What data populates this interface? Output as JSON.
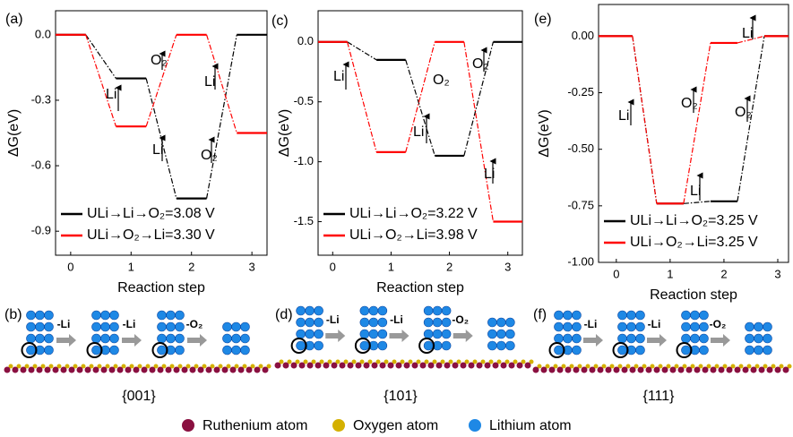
{
  "chart_data": [
    {
      "type": "line",
      "label": "(a)",
      "xlabel": "Reaction step",
      "ylabel": "ΔG(eV)",
      "xlim": [
        -0.25,
        3.25
      ],
      "xticks": [
        0,
        1,
        2,
        3
      ],
      "ylim": [
        -1.01,
        0.11
      ],
      "yticks": [
        {
          "value": 0,
          "label": "0.0"
        },
        -0.3,
        -0.6,
        -0.9
      ],
      "series": [
        {
          "name": "ULi→Li→O₂=3.08 V",
          "color": "#000000",
          "x": [
            -0.25,
            0.25,
            0.75,
            1.25,
            1.75,
            2.25,
            2.75,
            3.25
          ],
          "values": [
            0,
            0,
            -0.2,
            -0.2,
            -0.75,
            -0.75,
            0,
            0
          ]
        },
        {
          "name": "ULi→O₂→Li=3.30 V",
          "color": "#ff0000",
          "x": [
            -0.25,
            0.25,
            0.75,
            1.25,
            1.75,
            2.25,
            2.75,
            3.25
          ],
          "values": [
            0,
            0,
            -0.42,
            -0.42,
            0,
            0,
            -0.45,
            -0.45
          ]
        }
      ],
      "annotations": [
        "Li",
        "O₂",
        "Li",
        "Li",
        "O₂"
      ]
    },
    {
      "type": "line",
      "label": "(c)",
      "xlabel": "Reaction step",
      "ylabel": "ΔG(eV)",
      "xlim": [
        -0.25,
        3.25
      ],
      "xticks": [
        0,
        1,
        2,
        3
      ],
      "ylim": [
        -1.78,
        0.26
      ],
      "yticks": [
        {
          "value": 0,
          "label": "0.0"
        },
        -0.5,
        {
          "value": -1,
          "label": "-1.0"
        },
        -1.5
      ],
      "series": [
        {
          "name": "ULi→Li→O₂=3.22 V",
          "color": "#000000",
          "x": [
            -0.25,
            0.25,
            0.75,
            1.25,
            1.75,
            2.25,
            2.75,
            3.25
          ],
          "values": [
            0,
            0,
            -0.15,
            -0.15,
            -0.95,
            -0.95,
            0,
            0
          ]
        },
        {
          "name": "ULi→O₂→Li=3.98 V",
          "color": "#ff0000",
          "x": [
            -0.25,
            0.25,
            0.75,
            1.25,
            1.75,
            2.25,
            2.75,
            3.25
          ],
          "values": [
            0,
            0,
            -0.92,
            -0.92,
            0,
            0,
            -1.5,
            -1.5
          ]
        }
      ],
      "annotations": [
        "Li",
        "O₂",
        "Li",
        "O₂",
        "Li"
      ]
    },
    {
      "type": "line",
      "label": "(e)",
      "xlabel": "Reaction step",
      "ylabel": "ΔG(eV)",
      "xlim": [
        -0.33,
        3.2
      ],
      "xticks": [
        0,
        1,
        2,
        3
      ],
      "ylim": [
        -1.0,
        0.14
      ],
      "yticks": [
        {
          "value": 0,
          "label": "0.00"
        },
        -0.25,
        {
          "value": -0.5,
          "label": "-0.50"
        },
        -0.75,
        {
          "value": -1,
          "label": "-1.00"
        }
      ],
      "series": [
        {
          "name": "ULi→Li→O₂=3.25 V",
          "color": "#000000",
          "x": [
            -0.33,
            0.3,
            0.75,
            1.25,
            1.75,
            2.25,
            2.75,
            3.2
          ],
          "values": [
            0,
            0,
            -0.74,
            -0.74,
            -0.73,
            -0.73,
            0,
            0
          ]
        },
        {
          "name": "ULi→O₂→Li=3.25 V",
          "color": "#ff0000",
          "x": [
            -0.33,
            0.3,
            0.75,
            1.25,
            1.75,
            2.25,
            2.75,
            3.2
          ],
          "values": [
            0,
            0,
            -0.74,
            -0.74,
            -0.03,
            -0.03,
            0,
            0
          ]
        }
      ],
      "annotations": [
        "Li",
        "O₂",
        "O₂",
        "Li",
        "Li"
      ]
    }
  ],
  "structures": [
    {
      "label": "(b)",
      "facet": "{001}",
      "steps": [
        "-Li",
        "-Li",
        "-O₂"
      ]
    },
    {
      "label": "(d)",
      "facet": "{101}",
      "steps": [
        "-Li",
        "-Li",
        "-O₂"
      ]
    },
    {
      "label": "(f)",
      "facet": "{111}",
      "steps": [
        "-Li",
        "-Li",
        "-O₂"
      ]
    }
  ],
  "atom_legend": [
    "Ruthenium atom",
    "Oxygen atom",
    "Lithium atom"
  ]
}
